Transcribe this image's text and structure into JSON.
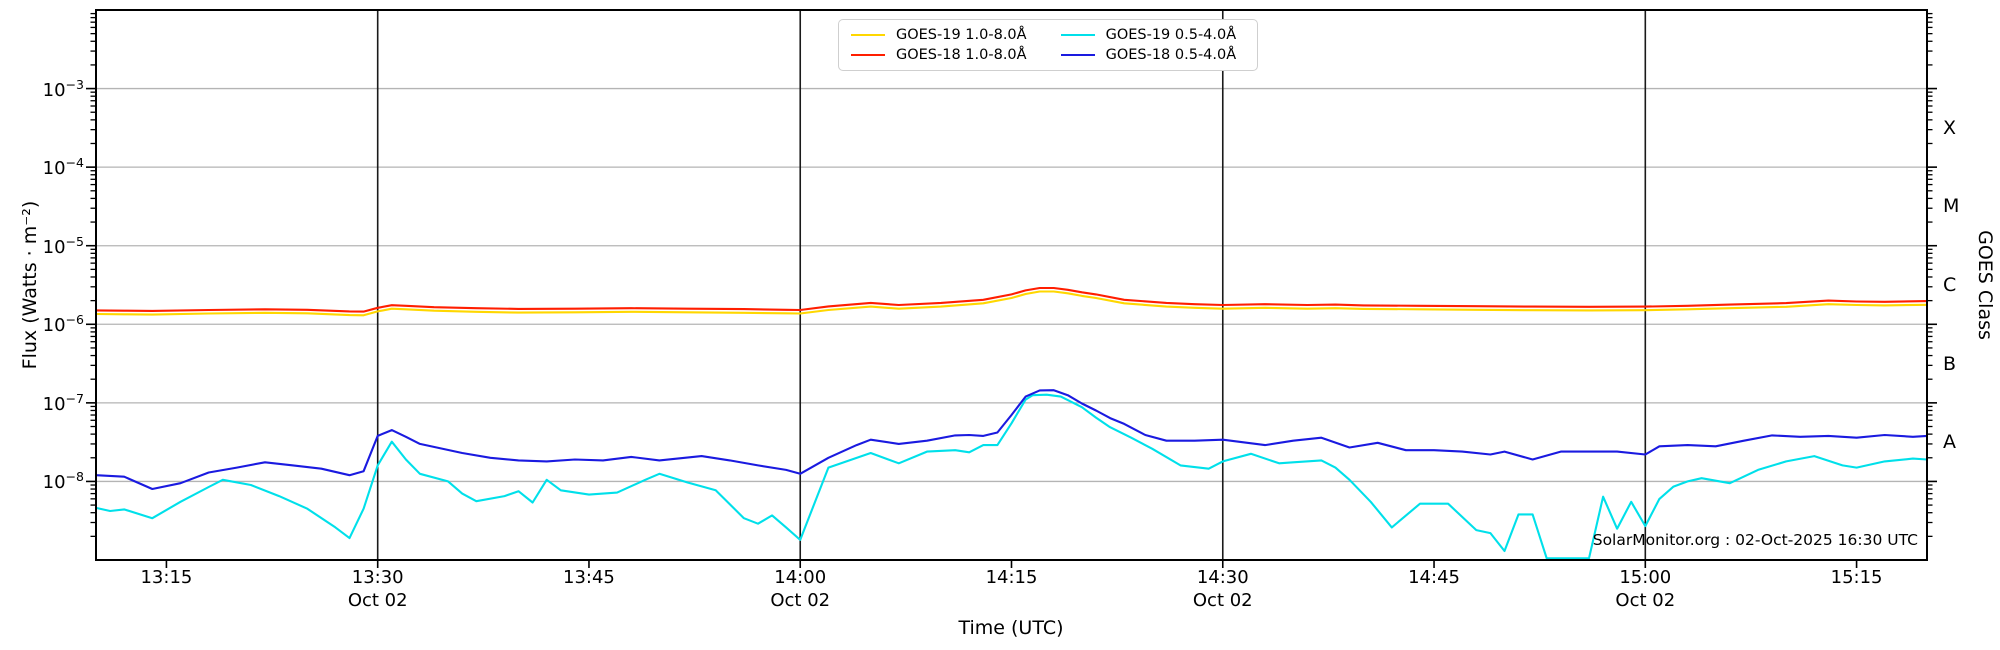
{
  "chart_data": {
    "type": "line",
    "title": "",
    "xlabel": "Time (UTC)",
    "ylabel": "Flux (Watts · m⁻²)",
    "ylabel_right": "GOES Class",
    "annotation": "SolarMonitor.org : 02-Oct-2025 16:30 UTC",
    "x_start_label": "13:10",
    "x_end_label": "15:20",
    "t_span_minutes": 130,
    "y_scale": "log",
    "y_log_top": -2,
    "y_log_bottom": -9,
    "grid_color": "#b4b4b4",
    "vline_color": "#1a1a1a",
    "x_ticks": [
      {
        "t": 5,
        "label": "13:15",
        "sub": ""
      },
      {
        "t": 20,
        "label": "13:30",
        "sub": "Oct 02"
      },
      {
        "t": 35,
        "label": "13:45",
        "sub": ""
      },
      {
        "t": 50,
        "label": "14:00",
        "sub": "Oct 02"
      },
      {
        "t": 65,
        "label": "14:15",
        "sub": ""
      },
      {
        "t": 80,
        "label": "14:30",
        "sub": "Oct 02"
      },
      {
        "t": 95,
        "label": "14:45",
        "sub": ""
      },
      {
        "t": 110,
        "label": "15:00",
        "sub": "Oct 02"
      },
      {
        "t": 125,
        "label": "15:15",
        "sub": ""
      }
    ],
    "vertical_lines_t": [
      20,
      50,
      80,
      110
    ],
    "y_ticks": [
      {
        "log": -3,
        "exp": "−3"
      },
      {
        "log": -4,
        "exp": "−4"
      },
      {
        "log": -5,
        "exp": "−5"
      },
      {
        "log": -6,
        "exp": "−6"
      },
      {
        "log": -7,
        "exp": "−7"
      },
      {
        "log": -8,
        "exp": "−8"
      }
    ],
    "goes_classes": [
      {
        "label": "X",
        "log_center": -3.5
      },
      {
        "label": "M",
        "log_center": -4.5
      },
      {
        "label": "C",
        "log_center": -5.5
      },
      {
        "label": "B",
        "log_center": -6.5
      },
      {
        "label": "A",
        "log_center": -7.5
      }
    ],
    "series": [
      {
        "name": "GOES-19 1.0-8.0Å",
        "color": "#ffd700",
        "points": [
          [
            0,
            1.35e-06
          ],
          [
            2,
            1.34e-06
          ],
          [
            4,
            1.33e-06
          ],
          [
            8,
            1.37e-06
          ],
          [
            12,
            1.4e-06
          ],
          [
            15,
            1.38e-06
          ],
          [
            18,
            1.31e-06
          ],
          [
            19,
            1.3e-06
          ],
          [
            20,
            1.46e-06
          ],
          [
            21,
            1.58e-06
          ],
          [
            22,
            1.55e-06
          ],
          [
            24,
            1.49e-06
          ],
          [
            27,
            1.44e-06
          ],
          [
            30,
            1.41e-06
          ],
          [
            34,
            1.42e-06
          ],
          [
            38,
            1.44e-06
          ],
          [
            42,
            1.42e-06
          ],
          [
            46,
            1.4e-06
          ],
          [
            49,
            1.38e-06
          ],
          [
            50,
            1.37e-06
          ],
          [
            52,
            1.52e-06
          ],
          [
            55,
            1.68e-06
          ],
          [
            57,
            1.58e-06
          ],
          [
            60,
            1.68e-06
          ],
          [
            63,
            1.85e-06
          ],
          [
            65,
            2.16e-06
          ],
          [
            66,
            2.43e-06
          ],
          [
            67,
            2.61e-06
          ],
          [
            68,
            2.61e-06
          ],
          [
            69,
            2.48e-06
          ],
          [
            70,
            2.3e-06
          ],
          [
            71,
            2.16e-06
          ],
          [
            73,
            1.85e-06
          ],
          [
            76,
            1.68e-06
          ],
          [
            78,
            1.62e-06
          ],
          [
            80,
            1.58e-06
          ],
          [
            83,
            1.62e-06
          ],
          [
            86,
            1.58e-06
          ],
          [
            88,
            1.6e-06
          ],
          [
            90,
            1.57e-06
          ],
          [
            94,
            1.55e-06
          ],
          [
            98,
            1.53e-06
          ],
          [
            102,
            1.51e-06
          ],
          [
            106,
            1.5e-06
          ],
          [
            110,
            1.51e-06
          ],
          [
            113,
            1.55e-06
          ],
          [
            116,
            1.6e-06
          ],
          [
            120,
            1.67e-06
          ],
          [
            123,
            1.8e-06
          ],
          [
            125,
            1.76e-06
          ],
          [
            127,
            1.74e-06
          ],
          [
            130,
            1.77e-06
          ]
        ]
      },
      {
        "name": "GOES-18 1.0-8.0Å",
        "color": "#ff1e00",
        "points": [
          [
            0,
            1.5e-06
          ],
          [
            2,
            1.49e-06
          ],
          [
            4,
            1.48e-06
          ],
          [
            8,
            1.52e-06
          ],
          [
            12,
            1.55e-06
          ],
          [
            15,
            1.53e-06
          ],
          [
            18,
            1.46e-06
          ],
          [
            19,
            1.45e-06
          ],
          [
            20,
            1.62e-06
          ],
          [
            21,
            1.75e-06
          ],
          [
            22,
            1.72e-06
          ],
          [
            24,
            1.65e-06
          ],
          [
            27,
            1.6e-06
          ],
          [
            30,
            1.57e-06
          ],
          [
            34,
            1.58e-06
          ],
          [
            38,
            1.6e-06
          ],
          [
            42,
            1.58e-06
          ],
          [
            46,
            1.56e-06
          ],
          [
            49,
            1.53e-06
          ],
          [
            50,
            1.52e-06
          ],
          [
            52,
            1.69e-06
          ],
          [
            55,
            1.87e-06
          ],
          [
            57,
            1.76e-06
          ],
          [
            60,
            1.87e-06
          ],
          [
            63,
            2.05e-06
          ],
          [
            65,
            2.4e-06
          ],
          [
            66,
            2.7e-06
          ],
          [
            67,
            2.9e-06
          ],
          [
            68,
            2.9e-06
          ],
          [
            69,
            2.75e-06
          ],
          [
            70,
            2.55e-06
          ],
          [
            71,
            2.4e-06
          ],
          [
            73,
            2.05e-06
          ],
          [
            76,
            1.87e-06
          ],
          [
            78,
            1.8e-06
          ],
          [
            80,
            1.76e-06
          ],
          [
            83,
            1.8e-06
          ],
          [
            86,
            1.76e-06
          ],
          [
            88,
            1.78e-06
          ],
          [
            90,
            1.74e-06
          ],
          [
            94,
            1.72e-06
          ],
          [
            98,
            1.7e-06
          ],
          [
            102,
            1.68e-06
          ],
          [
            106,
            1.67e-06
          ],
          [
            110,
            1.68e-06
          ],
          [
            113,
            1.72e-06
          ],
          [
            116,
            1.78e-06
          ],
          [
            120,
            1.86e-06
          ],
          [
            123,
            2e-06
          ],
          [
            125,
            1.95e-06
          ],
          [
            127,
            1.93e-06
          ],
          [
            130,
            1.97e-06
          ]
        ]
      },
      {
        "name": "GOES-19 0.5-4.0Å",
        "color": "#00e0ea",
        "points": [
          [
            0,
            4.6e-09
          ],
          [
            1,
            4.2e-09
          ],
          [
            2,
            4.4e-09
          ],
          [
            4,
            3.4e-09
          ],
          [
            6,
            5.5e-09
          ],
          [
            8,
            8.5e-09
          ],
          [
            9,
            1.05e-08
          ],
          [
            11,
            9e-09
          ],
          [
            13,
            6.5e-09
          ],
          [
            15,
            4.5e-09
          ],
          [
            17,
            2.6e-09
          ],
          [
            18,
            1.9e-09
          ],
          [
            19,
            4.5e-09
          ],
          [
            20,
            1.6e-08
          ],
          [
            21,
            3.2e-08
          ],
          [
            22,
            1.9e-08
          ],
          [
            23,
            1.25e-08
          ],
          [
            25,
            1e-08
          ],
          [
            26,
            7e-09
          ],
          [
            27,
            5.6e-09
          ],
          [
            29,
            6.5e-09
          ],
          [
            30,
            7.5e-09
          ],
          [
            31,
            5.4e-09
          ],
          [
            32,
            1.05e-08
          ],
          [
            33,
            7.7e-09
          ],
          [
            35,
            6.8e-09
          ],
          [
            37,
            7.2e-09
          ],
          [
            39,
            1.05e-08
          ],
          [
            40,
            1.25e-08
          ],
          [
            42,
            9.7e-09
          ],
          [
            44,
            7.7e-09
          ],
          [
            46,
            3.4e-09
          ],
          [
            47,
            2.9e-09
          ],
          [
            48,
            3.7e-09
          ],
          [
            49,
            2.6e-09
          ],
          [
            50,
            1.8e-09
          ],
          [
            52,
            1.5e-08
          ],
          [
            55,
            2.3e-08
          ],
          [
            57,
            1.7e-08
          ],
          [
            59,
            2.4e-08
          ],
          [
            61,
            2.5e-08
          ],
          [
            62,
            2.35e-08
          ],
          [
            63,
            2.9e-08
          ],
          [
            64,
            2.9e-08
          ],
          [
            65,
            5.5e-08
          ],
          [
            66,
            1.1e-07
          ],
          [
            66.5,
            1.25e-07
          ],
          [
            67.5,
            1.27e-07
          ],
          [
            68.5,
            1.2e-07
          ],
          [
            70,
            8.8e-08
          ],
          [
            71,
            6.5e-08
          ],
          [
            72,
            4.9e-08
          ],
          [
            73.5,
            3.6e-08
          ],
          [
            75,
            2.6e-08
          ],
          [
            77,
            1.6e-08
          ],
          [
            79,
            1.45e-08
          ],
          [
            80,
            1.8e-08
          ],
          [
            82,
            2.25e-08
          ],
          [
            84,
            1.7e-08
          ],
          [
            85,
            1.75e-08
          ],
          [
            87,
            1.85e-08
          ],
          [
            88,
            1.5e-08
          ],
          [
            89,
            1.05e-08
          ],
          [
            90.5,
            5.5e-09
          ],
          [
            92,
            2.6e-09
          ],
          [
            94,
            5.2e-09
          ],
          [
            96,
            5.2e-09
          ],
          [
            98,
            2.4e-09
          ],
          [
            99,
            2.2e-09
          ],
          [
            100,
            1.3e-09
          ],
          [
            101,
            3.8e-09
          ],
          [
            102,
            3.8e-09
          ],
          [
            103,
            1.05e-09
          ],
          [
            106,
            1.05e-09
          ],
          [
            107,
            6.4e-09
          ],
          [
            108,
            2.5e-09
          ],
          [
            109,
            5.5e-09
          ],
          [
            110,
            2.7e-09
          ],
          [
            111,
            6e-09
          ],
          [
            112,
            8.6e-09
          ],
          [
            113,
            1e-08
          ],
          [
            114,
            1.1e-08
          ],
          [
            116,
            9.5e-09
          ],
          [
            118,
            1.4e-08
          ],
          [
            120,
            1.8e-08
          ],
          [
            122,
            2.1e-08
          ],
          [
            124,
            1.6e-08
          ],
          [
            125,
            1.5e-08
          ],
          [
            127,
            1.8e-08
          ],
          [
            129,
            1.95e-08
          ],
          [
            130,
            1.9e-08
          ]
        ]
      },
      {
        "name": "GOES-18 0.5-4.0Å",
        "color": "#1a1ae0",
        "points": [
          [
            0,
            1.2e-08
          ],
          [
            2,
            1.15e-08
          ],
          [
            4,
            8e-09
          ],
          [
            6,
            9.5e-09
          ],
          [
            8,
            1.3e-08
          ],
          [
            10,
            1.5e-08
          ],
          [
            12,
            1.75e-08
          ],
          [
            14,
            1.6e-08
          ],
          [
            16,
            1.45e-08
          ],
          [
            18,
            1.2e-08
          ],
          [
            19,
            1.35e-08
          ],
          [
            20,
            3.8e-08
          ],
          [
            21,
            4.5e-08
          ],
          [
            22,
            3.7e-08
          ],
          [
            23,
            3e-08
          ],
          [
            26,
            2.3e-08
          ],
          [
            28,
            2e-08
          ],
          [
            30,
            1.85e-08
          ],
          [
            32,
            1.8e-08
          ],
          [
            34,
            1.9e-08
          ],
          [
            36,
            1.85e-08
          ],
          [
            38,
            2.05e-08
          ],
          [
            40,
            1.85e-08
          ],
          [
            43,
            2.1e-08
          ],
          [
            45,
            1.85e-08
          ],
          [
            47,
            1.6e-08
          ],
          [
            49,
            1.4e-08
          ],
          [
            50,
            1.25e-08
          ],
          [
            52,
            2e-08
          ],
          [
            54,
            2.9e-08
          ],
          [
            55,
            3.4e-08
          ],
          [
            57,
            3e-08
          ],
          [
            59,
            3.3e-08
          ],
          [
            61,
            3.85e-08
          ],
          [
            62,
            3.9e-08
          ],
          [
            63,
            3.8e-08
          ],
          [
            64,
            4.2e-08
          ],
          [
            65,
            7e-08
          ],
          [
            66,
            1.2e-07
          ],
          [
            67,
            1.44e-07
          ],
          [
            68,
            1.45e-07
          ],
          [
            69,
            1.25e-07
          ],
          [
            70,
            9.8e-08
          ],
          [
            71,
            8e-08
          ],
          [
            72,
            6.4e-08
          ],
          [
            73,
            5.4e-08
          ],
          [
            74.5,
            3.9e-08
          ],
          [
            76,
            3.3e-08
          ],
          [
            78,
            3.3e-08
          ],
          [
            80,
            3.4e-08
          ],
          [
            83,
            2.9e-08
          ],
          [
            85,
            3.3e-08
          ],
          [
            87,
            3.6e-08
          ],
          [
            89,
            2.7e-08
          ],
          [
            91,
            3.1e-08
          ],
          [
            93,
            2.5e-08
          ],
          [
            95,
            2.5e-08
          ],
          [
            97,
            2.4e-08
          ],
          [
            99,
            2.2e-08
          ],
          [
            100,
            2.4e-08
          ],
          [
            102,
            1.9e-08
          ],
          [
            104,
            2.4e-08
          ],
          [
            106,
            2.4e-08
          ],
          [
            108,
            2.4e-08
          ],
          [
            110,
            2.2e-08
          ],
          [
            111,
            2.8e-08
          ],
          [
            113,
            2.9e-08
          ],
          [
            115,
            2.8e-08
          ],
          [
            117,
            3.3e-08
          ],
          [
            119,
            3.85e-08
          ],
          [
            121,
            3.7e-08
          ],
          [
            123,
            3.8e-08
          ],
          [
            125,
            3.6e-08
          ],
          [
            127,
            3.9e-08
          ],
          [
            129,
            3.7e-08
          ],
          [
            130,
            3.8e-08
          ]
        ]
      }
    ],
    "legend": {
      "position": "top-center",
      "entries_order": [
        0,
        1,
        2,
        3
      ]
    }
  }
}
